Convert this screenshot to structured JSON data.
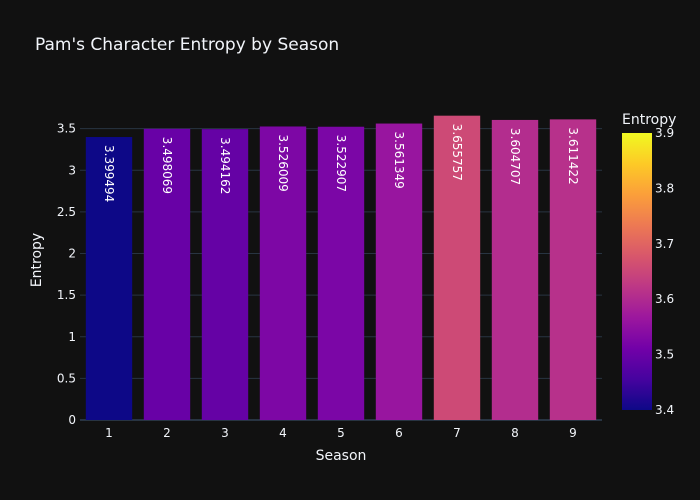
{
  "chart_data": {
    "type": "bar",
    "title": "Pam's Character Entropy by Season",
    "xlabel": "Season",
    "ylabel": "Entropy",
    "categories": [
      "1",
      "2",
      "3",
      "4",
      "5",
      "6",
      "7",
      "8",
      "9"
    ],
    "values": [
      3.399494,
      3.498069,
      3.494162,
      3.526009,
      3.522907,
      3.561349,
      3.655757,
      3.604707,
      3.611422
    ],
    "value_labels": [
      "3.399494",
      "3.498069",
      "3.494162",
      "3.526009",
      "3.522907",
      "3.561349",
      "3.655757",
      "3.604707",
      "3.611422"
    ],
    "ylim": [
      0,
      3.7
    ],
    "yticks": [
      "0",
      "0.5",
      "1",
      "1.5",
      "2",
      "2.5",
      "3",
      "3.5"
    ],
    "grid": true,
    "colorscale": "plasma",
    "colorbar": {
      "title": "Entropy",
      "range": [
        3.4,
        3.9
      ],
      "ticks": [
        "3.4",
        "3.5",
        "3.6",
        "3.7",
        "3.8",
        "3.9"
      ]
    },
    "colors": {
      "background": "#111111",
      "grid": "#283442",
      "text": "#f2f5fa"
    }
  }
}
